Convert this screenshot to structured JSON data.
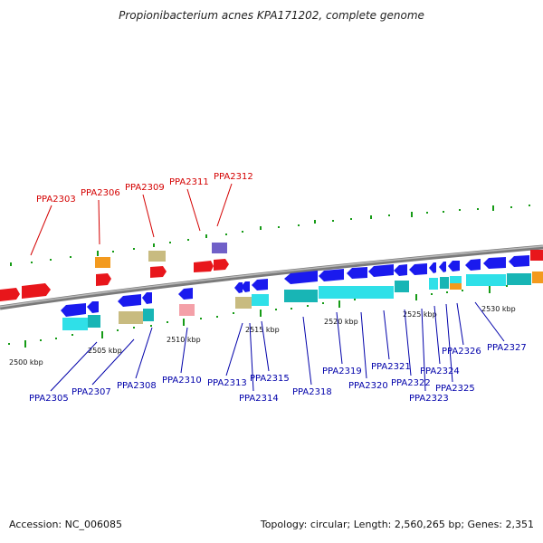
{
  "title": "Propionibacterium acnes KPA171202, complete genome",
  "accession": "Accession: NC_006085",
  "summary": "Topology: circular; Length: 2,560,265 bp; Genes: 2,351",
  "kbp_labels": [
    "2500 kbp",
    "2505 kbp",
    "2510 kbp",
    "2515 kbp",
    "2520 kbp",
    "2525 kbp",
    "2530 kbp"
  ],
  "top_genes": [
    "PPA2303",
    "PPA2306",
    "PPA2309",
    "PPA2311",
    "PPA2312"
  ],
  "bottom_genes": [
    "PPA2305",
    "PPA2307",
    "PPA2308",
    "PPA2310",
    "PPA2313",
    "PPA2314",
    "PPA2315",
    "PPA2318",
    "PPA2319",
    "PPA2320",
    "PPA2321",
    "PPA2322",
    "PPA2323",
    "PPA2324",
    "PPA2325",
    "PPA2326",
    "PPA2327"
  ],
  "colors": {
    "top_label": "#d40000",
    "bottom_label": "#0000aa",
    "red": "#e8161b",
    "blue": "#1a1aee",
    "cyan": "#2fe0e8",
    "teal": "#18b5b5",
    "orange": "#f39a1e",
    "khaki": "#c8bb80",
    "pink": "#f4a0a8",
    "purple": "#7060c8",
    "tick": "#169b16"
  }
}
